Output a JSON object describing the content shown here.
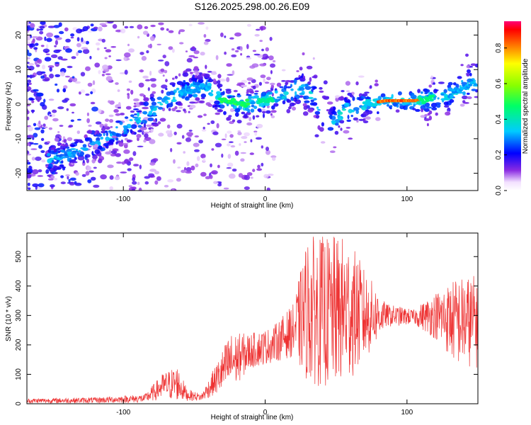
{
  "chart_data": [
    {
      "type": "heatmap",
      "title": "S126.2025.298.00.26.E09",
      "xlabel": "Height of straight line (km)",
      "ylabel": "Frequency (Hz)",
      "xlim": [
        -168,
        150
      ],
      "ylim": [
        -25,
        24
      ],
      "xticks": [
        "-100",
        "0",
        "100"
      ],
      "yticks": [
        "20",
        "10",
        "0",
        "-10",
        "-20"
      ],
      "colorbar": {
        "label": "Normalized spectral amplitude",
        "range": [
          0.0,
          0.95
        ],
        "ticks": [
          "0.0",
          "0.2",
          "0.4",
          "0.6",
          "0.8"
        ]
      },
      "ridge": [
        {
          "x": -150,
          "y": -16
        },
        {
          "x": -120,
          "y": -12
        },
        {
          "x": -100,
          "y": -7
        },
        {
          "x": -85,
          "y": -3
        },
        {
          "x": -70,
          "y": 1
        },
        {
          "x": -55,
          "y": 4
        },
        {
          "x": -42,
          "y": 5
        },
        {
          "x": -30,
          "y": 1
        },
        {
          "x": -15,
          "y": 0
        },
        {
          "x": 0,
          "y": 1
        },
        {
          "x": 15,
          "y": 3
        },
        {
          "x": 25,
          "y": 5
        },
        {
          "x": 35,
          "y": 2
        },
        {
          "x": 45,
          "y": -6
        },
        {
          "x": 55,
          "y": -2
        },
        {
          "x": 70,
          "y": 0
        },
        {
          "x": 85,
          "y": 1
        },
        {
          "x": 105,
          "y": 1
        },
        {
          "x": 125,
          "y": 2
        },
        {
          "x": 140,
          "y": 5
        },
        {
          "x": 150,
          "y": 7
        }
      ]
    },
    {
      "type": "line",
      "xlabel": "Height of straight line (km)",
      "ylabel": "SNR (10 * v/v)",
      "xlim": [
        -168,
        150
      ],
      "ylim": [
        0,
        580
      ],
      "xticks": [
        "-100",
        "0",
        "100"
      ],
      "yticks": [
        "0",
        "100",
        "200",
        "300",
        "400",
        "500"
      ],
      "color": "#ee3333",
      "envelope": [
        {
          "x": -168,
          "mean": 10,
          "amp": 8
        },
        {
          "x": -120,
          "mean": 12,
          "amp": 10
        },
        {
          "x": -85,
          "mean": 18,
          "amp": 14
        },
        {
          "x": -72,
          "mean": 60,
          "amp": 45
        },
        {
          "x": -62,
          "mean": 70,
          "amp": 60
        },
        {
          "x": -55,
          "mean": 30,
          "amp": 20
        },
        {
          "x": -45,
          "mean": 22,
          "amp": 12
        },
        {
          "x": -35,
          "mean": 80,
          "amp": 50
        },
        {
          "x": -25,
          "mean": 140,
          "amp": 100
        },
        {
          "x": -10,
          "mean": 180,
          "amp": 60
        },
        {
          "x": 5,
          "mean": 200,
          "amp": 60
        },
        {
          "x": 20,
          "mean": 250,
          "amp": 90
        },
        {
          "x": 30,
          "mean": 320,
          "amp": 250
        },
        {
          "x": 45,
          "mean": 310,
          "amp": 260
        },
        {
          "x": 58,
          "mean": 320,
          "amp": 250
        },
        {
          "x": 70,
          "mean": 300,
          "amp": 160
        },
        {
          "x": 85,
          "mean": 300,
          "amp": 40
        },
        {
          "x": 105,
          "mean": 295,
          "amp": 25
        },
        {
          "x": 120,
          "mean": 300,
          "amp": 80
        },
        {
          "x": 135,
          "mean": 280,
          "amp": 150
        },
        {
          "x": 150,
          "mean": 280,
          "amp": 160
        }
      ]
    }
  ]
}
